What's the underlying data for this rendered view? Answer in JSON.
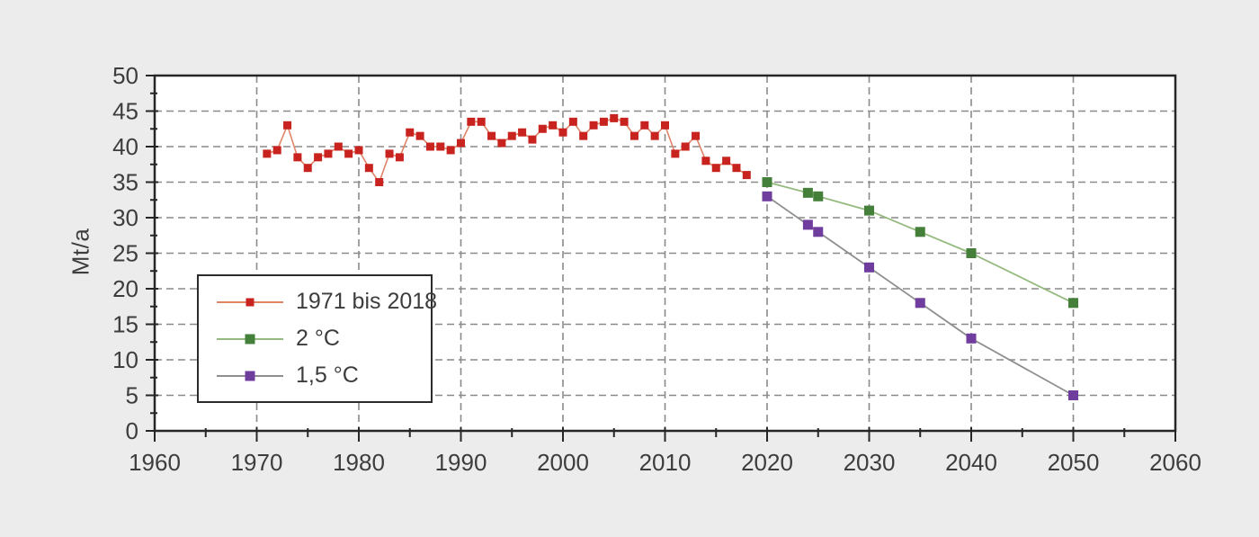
{
  "figure": {
    "background_color": "#ececec",
    "plot_background_color": "#ffffff",
    "axis_color": "#262626",
    "grid_color": "#8a8a8a",
    "text_color": "#3d3d3d"
  },
  "ylabel": "Mt/a",
  "chart_data": {
    "type": "line",
    "title": "",
    "xlabel": "",
    "ylabel": "Mt/a",
    "xlim": [
      1960,
      2060
    ],
    "ylim": [
      0,
      50
    ],
    "xticks": [
      1960,
      1970,
      1980,
      1990,
      2000,
      2010,
      2020,
      2030,
      2040,
      2050,
      2060
    ],
    "yticks": [
      0,
      5,
      10,
      15,
      20,
      25,
      30,
      35,
      40,
      45,
      50
    ],
    "x_minor_tick_step": 5,
    "y_minor_tick_step": 2.5,
    "grid": "dashed gridlines at every major tick, both axes",
    "legend_position": "lower left, inside plot, boxed",
    "series": [
      {
        "name": "1971 bis 2018",
        "marker_color": "#c8231f",
        "line_color": "#e08468",
        "marker_size": 9,
        "line_width": 1.6,
        "x": [
          1971,
          1972,
          1973,
          1974,
          1975,
          1976,
          1977,
          1978,
          1979,
          1980,
          1981,
          1982,
          1983,
          1984,
          1985,
          1986,
          1987,
          1988,
          1989,
          1990,
          1991,
          1992,
          1993,
          1994,
          1995,
          1996,
          1997,
          1998,
          1999,
          2000,
          2001,
          2002,
          2003,
          2004,
          2005,
          2006,
          2007,
          2008,
          2009,
          2010,
          2011,
          2012,
          2013,
          2014,
          2015,
          2016,
          2017,
          2018
        ],
        "values": [
          39,
          39.5,
          43,
          38.5,
          37,
          38.5,
          39,
          40,
          39,
          39.5,
          37,
          35,
          39,
          38.5,
          42,
          41.5,
          40,
          40,
          39.5,
          40.5,
          43.5,
          43.5,
          41.5,
          40.5,
          41.5,
          42,
          41,
          42.5,
          43,
          42,
          43.5,
          41.5,
          43,
          43.5,
          44,
          43.5,
          41.5,
          43,
          41.5,
          43,
          39,
          40,
          41.5,
          38,
          37,
          38,
          37,
          36
        ]
      },
      {
        "name": "2 °C",
        "marker_color": "#44803a",
        "line_color": "#95ba7f",
        "marker_size": 11,
        "line_width": 1.8,
        "x": [
          2020,
          2024,
          2025,
          2030,
          2035,
          2040,
          2050
        ],
        "values": [
          35,
          33.5,
          33,
          31,
          28,
          25,
          18
        ]
      },
      {
        "name": "1,5 °C",
        "marker_color": "#6f3d9e",
        "line_color": "#8f8f8f",
        "marker_size": 11,
        "line_width": 1.8,
        "x": [
          2020,
          2024,
          2025,
          2030,
          2035,
          2040,
          2050
        ],
        "values": [
          33,
          29,
          28,
          23,
          18,
          13,
          5
        ]
      }
    ]
  }
}
